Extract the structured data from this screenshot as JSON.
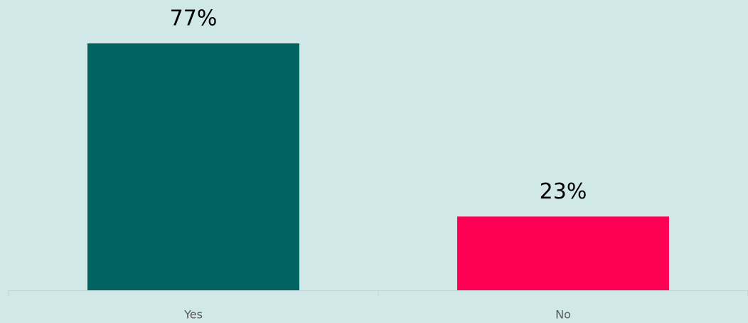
{
  "chart_data": {
    "type": "bar",
    "categories": [
      "Yes",
      "No"
    ],
    "values": [
      77,
      23
    ],
    "value_labels": [
      "77%",
      "23%"
    ],
    "colors": [
      "#006361",
      "#ff0055"
    ]
  }
}
